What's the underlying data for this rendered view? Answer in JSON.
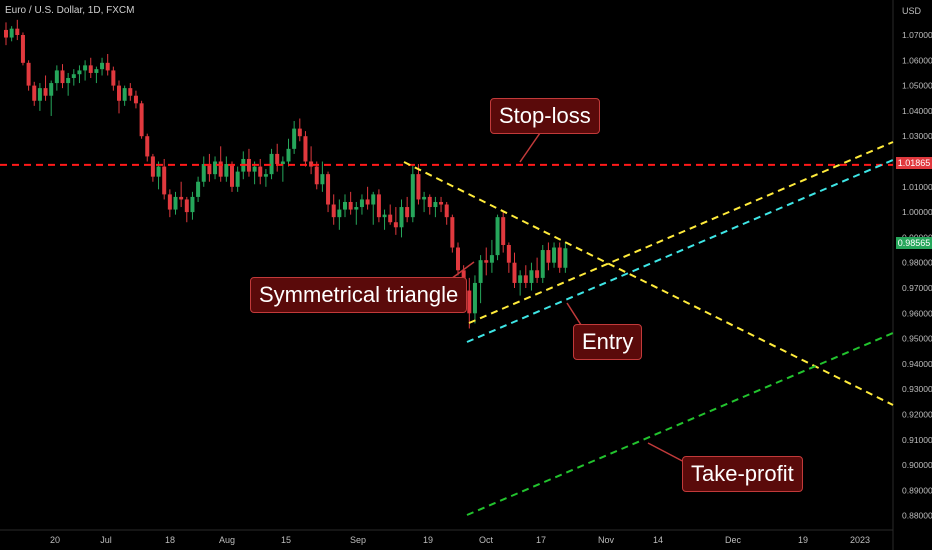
{
  "header": {
    "symbol": "Euro / U.S. Dollar, 1D, FXCM"
  },
  "price_axis": {
    "currency": "USD"
  },
  "colors": {
    "background": "#000000",
    "up": "#26a65b",
    "down": "#e0393e",
    "stop_line": "#ff1a1a",
    "triangle": "#ffeb3b",
    "entry_line": "#3ee6e6",
    "take_profit_line": "#22c32e",
    "label_fill": "#5a0a0a",
    "stop_tag": "#e0393e",
    "current_tag": "#26a65b"
  },
  "annotations": {
    "stop_loss": "Stop-loss",
    "triangle": "Symmetrical triangle",
    "entry": "Entry",
    "take_profit": "Take-profit"
  },
  "chart_data": {
    "type": "candlestick",
    "title": "Euro / U.S. Dollar, 1D, FXCM",
    "ylabel": "USD",
    "ylim": [
      0.875,
      1.082
    ],
    "y_ticks": [
      "1.07000",
      "1.06000",
      "1.05000",
      "1.04000",
      "1.03000",
      "1.02000",
      "1.01000",
      "1.00000",
      "0.99000",
      "0.98000",
      "0.97000",
      "0.96000",
      "0.95000",
      "0.94000",
      "0.93000",
      "0.92000",
      "0.91000",
      "0.90000",
      "0.89000",
      "0.88000"
    ],
    "x_ticks": [
      "20",
      "Jul",
      "18",
      "Aug",
      "15",
      "Sep",
      "19",
      "Oct",
      "17",
      "Nov",
      "14",
      "Dec",
      "19",
      "2023"
    ],
    "price_tags": {
      "stop_loss": "1.01865",
      "current": "0.98565"
    },
    "levels": {
      "stop_loss": 1.01865,
      "current": 0.98565
    },
    "grid": false,
    "candles": [
      [
        1.072,
        1.075,
        1.066,
        1.069
      ],
      [
        1.069,
        1.0735,
        1.0675,
        1.0725
      ],
      [
        1.0725,
        1.076,
        1.068,
        1.07
      ],
      [
        1.07,
        1.071,
        1.058,
        1.059
      ],
      [
        1.059,
        1.06,
        1.048,
        1.05
      ],
      [
        1.05,
        1.0515,
        1.042,
        1.044
      ],
      [
        1.044,
        1.051,
        1.04,
        1.049
      ],
      [
        1.049,
        1.054,
        1.044,
        1.046
      ],
      [
        1.046,
        1.052,
        1.038,
        1.051
      ],
      [
        1.051,
        1.058,
        1.048,
        1.056
      ],
      [
        1.056,
        1.0585,
        1.049,
        1.051
      ],
      [
        1.051,
        1.055,
        1.046,
        1.053
      ],
      [
        1.053,
        1.0565,
        1.05,
        1.0545
      ],
      [
        1.0545,
        1.058,
        1.051,
        1.056
      ],
      [
        1.056,
        1.06,
        1.052,
        1.058
      ],
      [
        1.058,
        1.061,
        1.053,
        1.055
      ],
      [
        1.055,
        1.0575,
        1.051,
        1.0565
      ],
      [
        1.0565,
        1.061,
        1.054,
        1.059
      ],
      [
        1.059,
        1.0625,
        1.054,
        1.056
      ],
      [
        1.056,
        1.0575,
        1.048,
        1.05
      ],
      [
        1.05,
        1.052,
        1.039,
        1.044
      ],
      [
        1.044,
        1.05,
        1.042,
        1.049
      ],
      [
        1.049,
        1.051,
        1.044,
        1.046
      ],
      [
        1.046,
        1.048,
        1.041,
        1.043
      ],
      [
        1.043,
        1.044,
        1.029,
        1.03
      ],
      [
        1.03,
        1.031,
        1.02,
        1.022
      ],
      [
        1.022,
        1.023,
        1.012,
        1.014
      ],
      [
        1.014,
        1.02,
        1.009,
        1.018
      ],
      [
        1.018,
        1.021,
        1.005,
        1.007
      ],
      [
        1.007,
        1.009,
        0.998,
        1.001
      ],
      [
        1.001,
        1.008,
        0.999,
        1.006
      ],
      [
        1.006,
        1.012,
        1.002,
        1.005
      ],
      [
        1.005,
        1.006,
        0.996,
        1.0
      ],
      [
        1.0,
        1.008,
        0.997,
        1.006
      ],
      [
        1.006,
        1.014,
        1.004,
        1.012
      ],
      [
        1.012,
        1.022,
        1.01,
        1.019
      ],
      [
        1.019,
        1.023,
        1.012,
        1.015
      ],
      [
        1.015,
        1.022,
        1.013,
        1.02
      ],
      [
        1.02,
        1.026,
        1.012,
        1.014
      ],
      [
        1.014,
        1.022,
        1.012,
        1.019
      ],
      [
        1.019,
        1.02,
        1.008,
        1.01
      ],
      [
        1.01,
        1.018,
        1.008,
        1.016
      ],
      [
        1.016,
        1.024,
        1.013,
        1.021
      ],
      [
        1.021,
        1.025,
        1.014,
        1.016
      ],
      [
        1.016,
        1.02,
        1.011,
        1.018
      ],
      [
        1.018,
        1.021,
        1.011,
        1.014
      ],
      [
        1.014,
        1.017,
        1.01,
        1.015
      ],
      [
        1.015,
        1.025,
        1.013,
        1.023
      ],
      [
        1.023,
        1.027,
        1.016,
        1.019
      ],
      [
        1.019,
        1.022,
        1.012,
        1.02
      ],
      [
        1.02,
        1.029,
        1.018,
        1.025
      ],
      [
        1.025,
        1.036,
        1.023,
        1.033
      ],
      [
        1.033,
        1.037,
        1.028,
        1.03
      ],
      [
        1.03,
        1.032,
        1.018,
        1.02
      ],
      [
        1.02,
        1.026,
        1.015,
        1.018
      ],
      [
        1.018,
        1.02,
        1.009,
        1.011
      ],
      [
        1.011,
        1.02,
        1.008,
        1.015
      ],
      [
        1.015,
        1.016,
        1.0,
        1.003
      ],
      [
        1.003,
        1.007,
        0.995,
        0.998
      ],
      [
        0.998,
        1.005,
        0.993,
        1.001
      ],
      [
        1.001,
        1.007,
        0.998,
        1.004
      ],
      [
        1.004,
        1.008,
        0.999,
        1.001
      ],
      [
        1.001,
        1.004,
        0.995,
        1.002
      ],
      [
        1.002,
        1.007,
        0.999,
        1.005
      ],
      [
        1.005,
        1.01,
        1.001,
        1.003
      ],
      [
        1.003,
        1.008,
        0.995,
        1.007
      ],
      [
        1.007,
        1.009,
        0.996,
        0.998
      ],
      [
        0.998,
        1.001,
        0.993,
        0.999
      ],
      [
        0.999,
        1.003,
        0.995,
        0.996
      ],
      [
        0.996,
        1.002,
        0.991,
        0.994
      ],
      [
        0.994,
        1.005,
        0.99,
        1.002
      ],
      [
        1.002,
        1.006,
        0.996,
        0.998
      ],
      [
        0.998,
        1.019,
        0.996,
        1.015
      ],
      [
        1.015,
        1.019,
        1.003,
        1.005
      ],
      [
        1.005,
        1.008,
        1.0,
        1.006
      ],
      [
        1.006,
        1.007,
        0.999,
        1.002
      ],
      [
        1.002,
        1.006,
        0.998,
        1.004
      ],
      [
        1.004,
        1.006,
        1.0,
        1.003
      ],
      [
        1.003,
        1.004,
        0.995,
        0.998
      ],
      [
        0.998,
        0.999,
        0.984,
        0.986
      ],
      [
        0.986,
        0.988,
        0.975,
        0.977
      ],
      [
        0.977,
        0.979,
        0.963,
        0.969
      ],
      [
        0.969,
        0.974,
        0.954,
        0.96
      ],
      [
        0.96,
        0.975,
        0.956,
        0.972
      ],
      [
        0.972,
        0.983,
        0.964,
        0.981
      ],
      [
        0.981,
        0.986,
        0.975,
        0.98
      ],
      [
        0.98,
        0.989,
        0.976,
        0.983
      ],
      [
        0.983,
        0.999,
        0.981,
        0.998
      ],
      [
        0.998,
        1.0,
        0.984,
        0.987
      ],
      [
        0.987,
        0.988,
        0.976,
        0.98
      ],
      [
        0.98,
        0.984,
        0.97,
        0.972
      ],
      [
        0.972,
        0.977,
        0.967,
        0.975
      ],
      [
        0.975,
        0.979,
        0.97,
        0.972
      ],
      [
        0.972,
        0.98,
        0.969,
        0.977
      ],
      [
        0.977,
        0.982,
        0.972,
        0.974
      ],
      [
        0.974,
        0.987,
        0.972,
        0.985
      ],
      [
        0.985,
        0.988,
        0.977,
        0.98
      ],
      [
        0.98,
        0.988,
        0.978,
        0.986
      ],
      [
        0.986,
        0.988,
        0.976,
        0.978
      ],
      [
        0.978,
        0.988,
        0.976,
        0.9857
      ]
    ]
  }
}
